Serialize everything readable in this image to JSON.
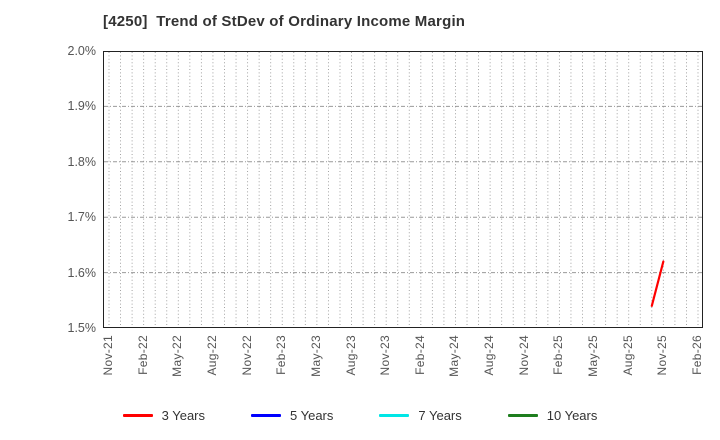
{
  "window": {
    "background": "#ffffff"
  },
  "chart_data": {
    "type": "line",
    "title": "[4250]  Trend of StDev of Ordinary Income Margin",
    "xlabel": "",
    "ylabel": "",
    "ylim": [
      1.5,
      2.0
    ],
    "yticks": [
      {
        "value": 2.0,
        "label": "2.0%"
      },
      {
        "value": 1.9,
        "label": "1.9%"
      },
      {
        "value": 1.8,
        "label": "1.8%"
      },
      {
        "value": 1.7,
        "label": "1.7%"
      },
      {
        "value": 1.6,
        "label": "1.6%"
      },
      {
        "value": 1.5,
        "label": "1.5%"
      }
    ],
    "x_axis": {
      "start_month": "Nov-21",
      "end_month": "Feb-26",
      "months_span": 51,
      "tick_every_months": 3,
      "ticklabels": [
        "Nov-21",
        "Feb-22",
        "May-22",
        "Aug-22",
        "Nov-22",
        "Feb-23",
        "May-23",
        "Aug-23",
        "Nov-23",
        "Feb-24",
        "May-24",
        "Aug-24",
        "Nov-24",
        "Feb-25",
        "May-25",
        "Aug-25",
        "Nov-25",
        "Feb-26"
      ]
    },
    "grid": {
      "vertical": "dotted, every month",
      "horizontal": "dash-dot, every 0.1%",
      "color": "#999999"
    },
    "legend_position": "bottom",
    "series": [
      {
        "name": "3 Years",
        "color": "#ff0000",
        "points": [
          {
            "month": "Oct-25",
            "value": 1.54
          },
          {
            "month": "Nov-25",
            "value": 1.62
          }
        ]
      },
      {
        "name": "5 Years",
        "color": "#0000ff",
        "points": []
      },
      {
        "name": "7 Years",
        "color": "#00e6e6",
        "points": []
      },
      {
        "name": "10 Years",
        "color": "#1e7e1e",
        "points": []
      }
    ],
    "plot_border_color": "#222222",
    "tick_label_color": "#555555",
    "title_color": "#333333"
  }
}
